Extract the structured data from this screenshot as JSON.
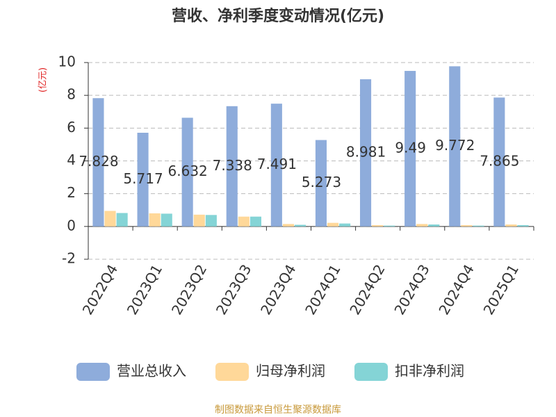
{
  "chart_data": {
    "type": "bar",
    "title": "营收、净利季度变动情况(亿元)",
    "y_label": "(亿元)",
    "categories": [
      "2022Q4",
      "2023Q1",
      "2023Q2",
      "2023Q3",
      "2023Q4",
      "2024Q1",
      "2024Q2",
      "2024Q3",
      "2024Q4",
      "2025Q1"
    ],
    "series": [
      {
        "name": "营业总收入",
        "color": "#8eacdb",
        "values": [
          7.828,
          5.717,
          6.632,
          7.338,
          7.491,
          5.273,
          8.981,
          9.49,
          9.772,
          7.865
        ],
        "show_labels": true
      },
      {
        "name": "归母净利润",
        "color": "#ffd899",
        "values": [
          0.95,
          0.8,
          0.72,
          0.6,
          0.15,
          0.22,
          0.08,
          0.15,
          0.08,
          0.12
        ],
        "show_labels": false
      },
      {
        "name": "扣非净利润",
        "color": "#84d4d6",
        "values": [
          0.82,
          0.78,
          0.7,
          0.6,
          0.1,
          0.18,
          0.05,
          0.12,
          0.05,
          0.08
        ],
        "show_labels": false
      }
    ],
    "ylim": [
      -2,
      10
    ],
    "yticks": [
      -2,
      0,
      2,
      4,
      6,
      8,
      10
    ],
    "grid": true,
    "source": "制图数据来自恒生聚源数据库"
  }
}
